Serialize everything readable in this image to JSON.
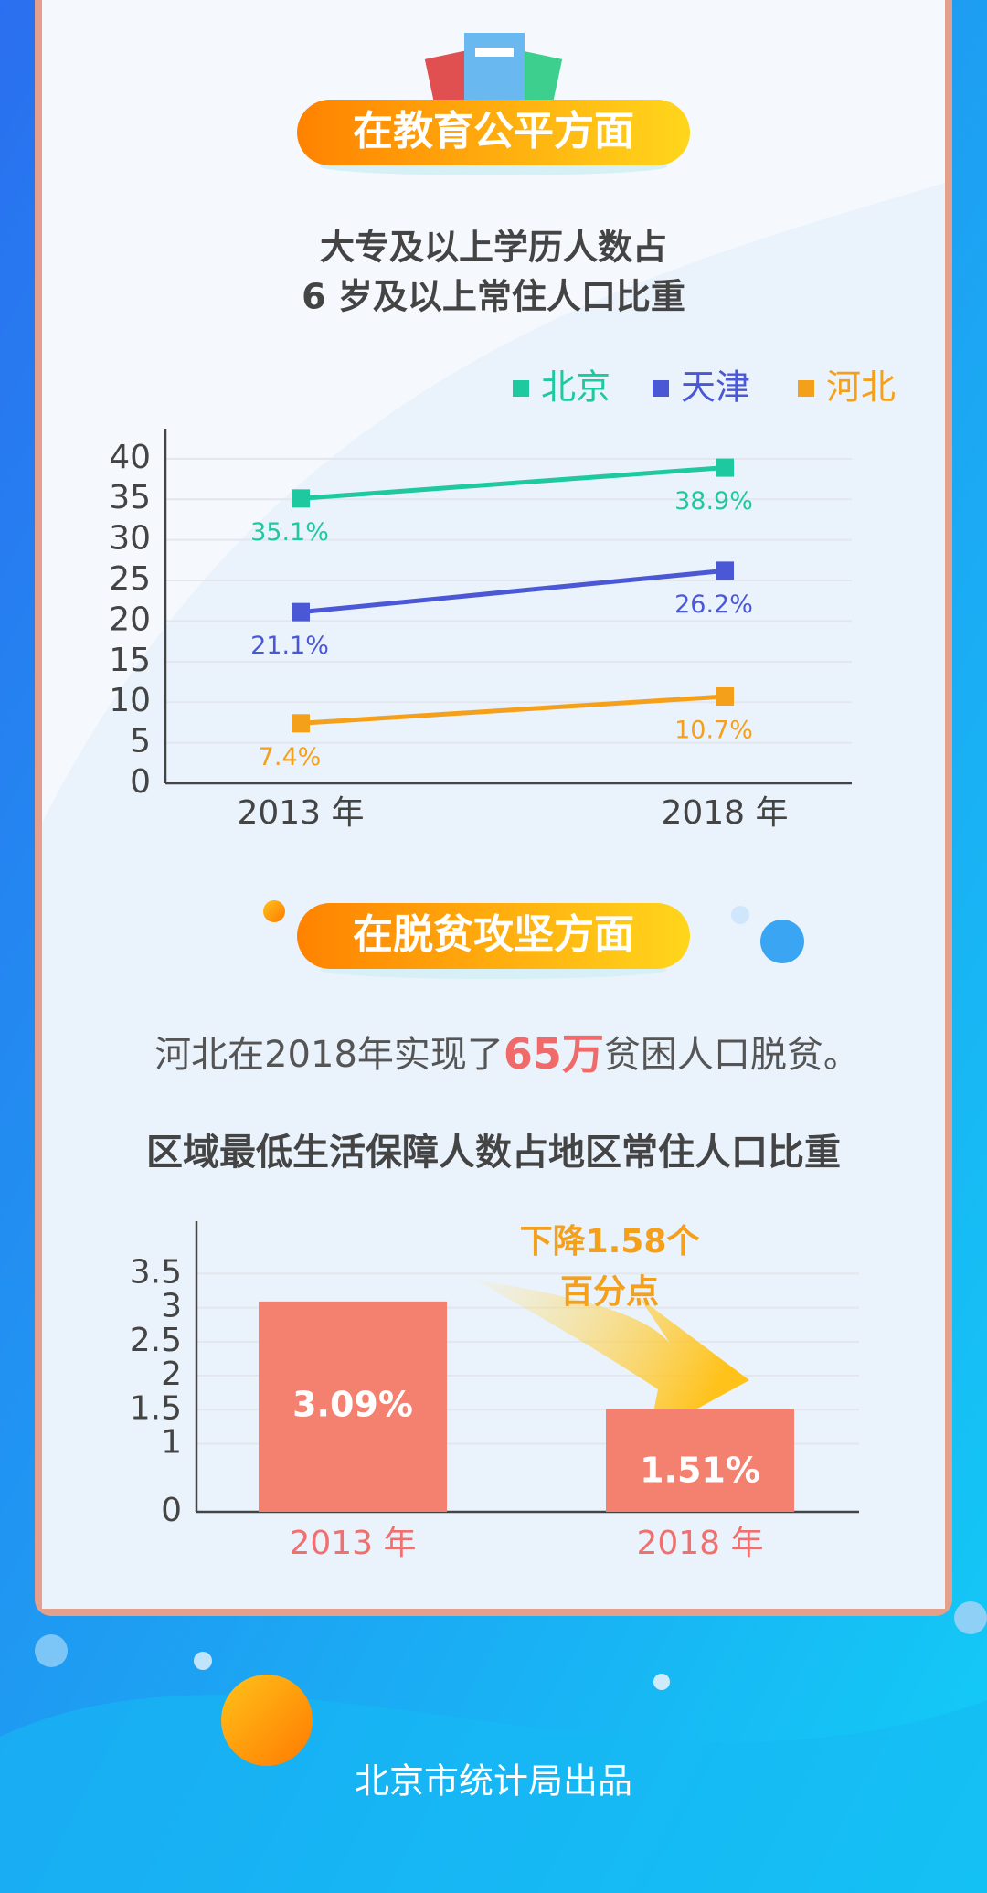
{
  "headings": [
    "在教育公平方面",
    "在脱贫攻坚方面"
  ],
  "sentence": [
    "河北在2018年实现了",
    "65万",
    "贫困人口脱贫。"
  ],
  "footer": "北京市统计局出品",
  "chart_data": [
    {
      "type": "line",
      "title": [
        "大专及以上学历人数占",
        "6 岁及以上常住人口比重"
      ],
      "categories": [
        "2013 年",
        "2018 年"
      ],
      "series": [
        {
          "name": "北京",
          "color": "#1ec9a0",
          "values": [
            35.1,
            38.9
          ],
          "value_labels": [
            "35.1%",
            "38.9%"
          ]
        },
        {
          "name": "天津",
          "color": "#4b58d6",
          "values": [
            21.1,
            26.2
          ],
          "value_labels": [
            "21.1%",
            "26.2%"
          ]
        },
        {
          "name": "河北",
          "color": "#f5a01a",
          "values": [
            7.4,
            10.7
          ],
          "value_labels": [
            "7.4%",
            "10.7%"
          ]
        }
      ],
      "ylim": [
        0,
        43.7
      ],
      "yticks": [
        0,
        5,
        10,
        15,
        20,
        25,
        30,
        35,
        40
      ],
      "grid": true,
      "legend": "top-right"
    },
    {
      "type": "bar",
      "title": "区域最低生活保障人数占地区常住人口比重",
      "categories": [
        "2013 年",
        "2018 年"
      ],
      "values": [
        3.09,
        1.51
      ],
      "value_labels": [
        "3.09%",
        "1.51%"
      ],
      "color": "#f4806f",
      "annotation": [
        "下降1.58个",
        "百分点"
      ],
      "ylim": [
        0,
        4.27
      ],
      "yticks": [
        0,
        1,
        1.5,
        2,
        2.5,
        3,
        3.5
      ],
      "grid": true
    }
  ]
}
